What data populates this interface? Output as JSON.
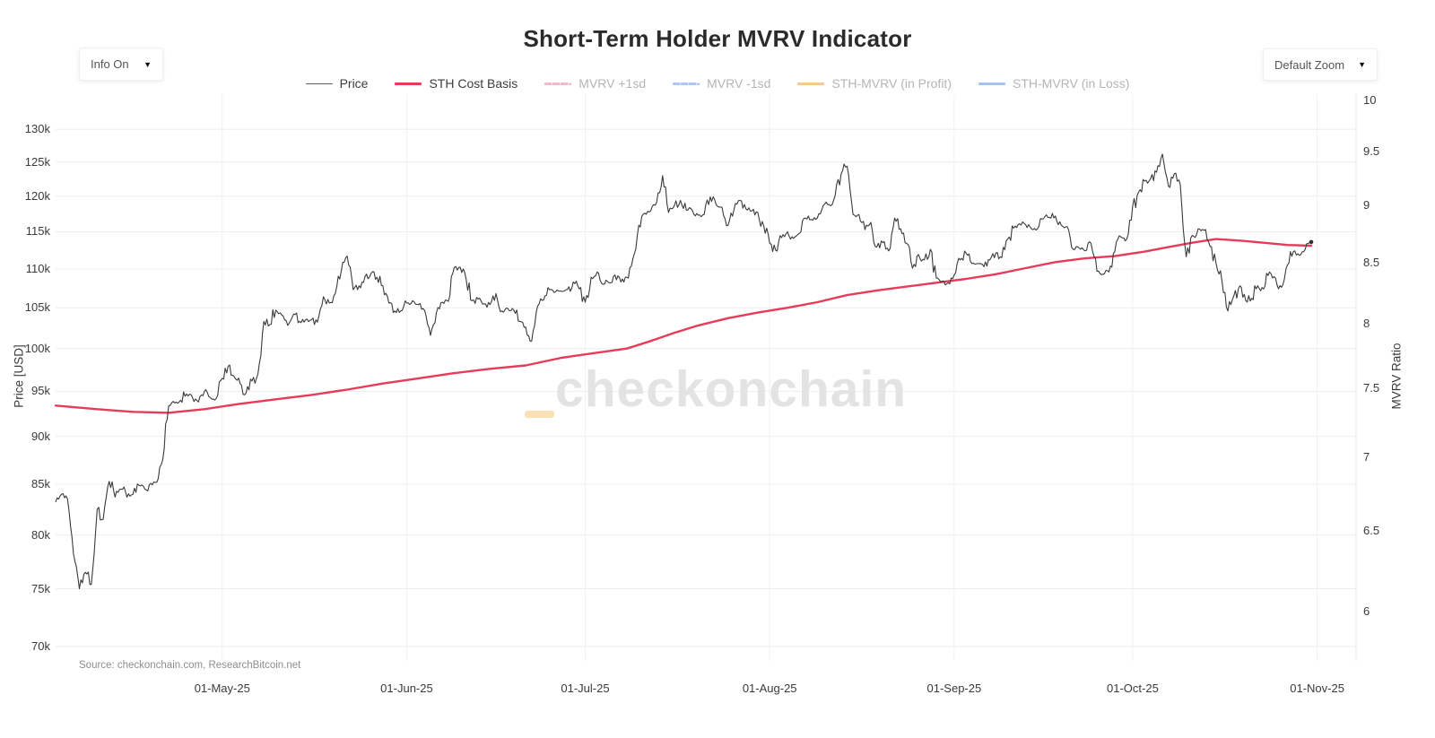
{
  "header": {
    "title": "Short-Term Holder MVRV Indicator",
    "info_dropdown": {
      "label": "Info On",
      "arrow": "▼"
    },
    "zoom_dropdown": {
      "label": "Default Zoom",
      "arrow": "▼"
    }
  },
  "legend": {
    "items": [
      {
        "label": "Price",
        "color": "#5f5f5f",
        "dashed": false,
        "muted": false,
        "thin": true
      },
      {
        "label": "STH Cost Basis",
        "color": "#e63c5a",
        "dashed": false,
        "muted": false,
        "thin": false
      },
      {
        "label": "MVRV +1sd",
        "color": "#f2b9c8",
        "dashed": true,
        "muted": true,
        "thin": false
      },
      {
        "label": "MVRV -1sd",
        "color": "#abc8f2",
        "dashed": true,
        "muted": true,
        "thin": false
      },
      {
        "label": "STH-MVRV (in Profit)",
        "color": "#f5c990",
        "dashed": false,
        "muted": true,
        "thin": false
      },
      {
        "label": "STH-MVRV (in Loss)",
        "color": "#a5c3ec",
        "dashed": false,
        "muted": true,
        "thin": false
      }
    ]
  },
  "watermark": {
    "text": "checkonchain",
    "underscore_color": "#fbe0b4",
    "text_color": "#e3e3e3"
  },
  "source": {
    "text": "Source: checkonchain.com, ResearchBitcoin.net"
  },
  "axes": {
    "left": {
      "title": "Price [USD]",
      "scale": "log",
      "ticks": [
        [
          "70k",
          70
        ],
        [
          "75k",
          75
        ],
        [
          "80k",
          80
        ],
        [
          "85k",
          85
        ],
        [
          "90k",
          90
        ],
        [
          "95k",
          95
        ],
        [
          "100k",
          100
        ],
        [
          "105k",
          105
        ],
        [
          "110k",
          110
        ],
        [
          "115k",
          115
        ],
        [
          "120k",
          120
        ],
        [
          "125k",
          125
        ],
        [
          "130k",
          130
        ]
      ]
    },
    "right": {
      "title": "MVRV Ratio",
      "scale": "log",
      "ticks": [
        [
          "6",
          6
        ],
        [
          "6.5",
          6.5
        ],
        [
          "7",
          7
        ],
        [
          "7.5",
          7.5
        ],
        [
          "8",
          8
        ],
        [
          "8.5",
          8.5
        ],
        [
          "9",
          9
        ],
        [
          "9.5",
          9.5
        ],
        [
          "10",
          10
        ]
      ]
    },
    "x": {
      "ticks": [
        [
          "01-May-25",
          "2025-05-01"
        ],
        [
          "01-Jun-25",
          "2025-06-01"
        ],
        [
          "01-Jul-25",
          "2025-07-01"
        ],
        [
          "01-Aug-25",
          "2025-08-01"
        ],
        [
          "01-Sep-25",
          "2025-09-01"
        ],
        [
          "01-Oct-25",
          "2025-10-01"
        ],
        [
          "01-Nov-25",
          "2025-11-01"
        ]
      ]
    }
  },
  "chart_data": {
    "type": "line",
    "title": "Short-Term Holder MVRV Indicator",
    "x_unit": "date",
    "y_unit_left": "thousand USD (log scale)",
    "y_unit_right": "MVRV Ratio (log scale)",
    "ylim_left": [
      68.8,
      135.6
    ],
    "ylim_right": [
      5.71,
      10.06
    ],
    "x_range": [
      "2025-04-03",
      "2025-11-07"
    ],
    "grid": true,
    "legend_position": "top-center",
    "hidden_series": [
      "MVRV +1sd",
      "MVRV -1sd",
      "STH-MVRV (in Profit)",
      "STH-MVRV (in Loss)"
    ],
    "series": [
      {
        "name": "Price",
        "color": "#3a3a3a",
        "axis": "left",
        "frequency": "daily",
        "start_date": "2025-04-03",
        "values": [
          83.2,
          84.0,
          83.5,
          78.2,
          75.0,
          76.5,
          75.4,
          82.5,
          81.5,
          85.3,
          83.7,
          84.5,
          83.7,
          84.0,
          84.9,
          84.5,
          85.1,
          85.2,
          87.5,
          93.4,
          93.7,
          94.0,
          94.7,
          94.3,
          93.8,
          95.0,
          94.3,
          94.2,
          96.5,
          97.9,
          96.7,
          95.9,
          94.8,
          96.2,
          97.0,
          103.3,
          102.9,
          104.7,
          104.1,
          102.8,
          104.2,
          103.3,
          103.5,
          103.5,
          103.2,
          106.4,
          105.6,
          106.8,
          109.7,
          111.7,
          107.3,
          107.8,
          109.0,
          109.4,
          108.9,
          107.8,
          105.6,
          104.6,
          104.6,
          105.6,
          105.9,
          105.4,
          104.7,
          101.6,
          104.4,
          105.7,
          105.8,
          110.2,
          110.2,
          108.6,
          105.9,
          106.1,
          105.5,
          105.4,
          106.8,
          104.6,
          104.9,
          104.7,
          103.3,
          102.6,
          100.9,
          105.2,
          106.0,
          107.3,
          107.0,
          107.1,
          107.3,
          108.3,
          107.4,
          105.7,
          108.9,
          109.6,
          108.0,
          108.2,
          109.2,
          108.3,
          108.9,
          111.3,
          115.9,
          117.6,
          117.9,
          119.1,
          123.0,
          117.7,
          118.7,
          119.4,
          118.0,
          118.0,
          117.3,
          117.4,
          119.9,
          118.8,
          118.4,
          115.9,
          118.1,
          119.4,
          118.2,
          117.9,
          117.7,
          115.8,
          113.4,
          112.5,
          114.2,
          115.0,
          114.1,
          114.8,
          116.9,
          116.7,
          116.9,
          118.7,
          118.8,
          120.1,
          123.2,
          124.4,
          117.4,
          117.4,
          115.3,
          116.3,
          112.9,
          113.5,
          112.4,
          116.9,
          115.4,
          113.4,
          110.1,
          111.9,
          111.2,
          112.6,
          108.8,
          108.4,
          108.2,
          109.2,
          111.2,
          112.1,
          110.7,
          110.7,
          110.3,
          111.2,
          112.1,
          111.5,
          114.0,
          115.5,
          116.1,
          116.0,
          115.4,
          115.4,
          116.8,
          117.0,
          117.2,
          115.9,
          115.7,
          112.6,
          112.8,
          112.4,
          113.4,
          109.7,
          109.3,
          109.6,
          112.3,
          114.3,
          114.0,
          118.6,
          120.6,
          122.2,
          122.5,
          123.5,
          126.2,
          121.5,
          123.3,
          121.7,
          111.6,
          114.5,
          115.4,
          115.2,
          113.0,
          110.8,
          108.4,
          104.6,
          106.5,
          107.8,
          105.9,
          106.2,
          107.8,
          107.4,
          109.6,
          108.8,
          107.6,
          110.5,
          112.3,
          111.8,
          112.6,
          113.6
        ]
      },
      {
        "name": "STH Cost Basis",
        "color": "#e63c5a",
        "axis": "left",
        "points": [
          [
            "2025-04-03",
            93.4
          ],
          [
            "2025-04-10",
            93.0
          ],
          [
            "2025-04-16",
            92.7
          ],
          [
            "2025-04-22",
            92.6
          ],
          [
            "2025-04-28",
            93.0
          ],
          [
            "2025-05-04",
            93.6
          ],
          [
            "2025-05-10",
            94.1
          ],
          [
            "2025-05-16",
            94.6
          ],
          [
            "2025-05-22",
            95.2
          ],
          [
            "2025-05-28",
            95.9
          ],
          [
            "2025-06-03",
            96.5
          ],
          [
            "2025-06-09",
            97.1
          ],
          [
            "2025-06-15",
            97.6
          ],
          [
            "2025-06-21",
            98.0
          ],
          [
            "2025-06-27",
            98.9
          ],
          [
            "2025-07-03",
            99.5
          ],
          [
            "2025-07-08",
            100.0
          ],
          [
            "2025-07-12",
            100.9
          ],
          [
            "2025-07-16",
            101.9
          ],
          [
            "2025-07-20",
            102.8
          ],
          [
            "2025-07-25",
            103.7
          ],
          [
            "2025-07-30",
            104.4
          ],
          [
            "2025-08-04",
            105.0
          ],
          [
            "2025-08-09",
            105.7
          ],
          [
            "2025-08-14",
            106.6
          ],
          [
            "2025-08-19",
            107.2
          ],
          [
            "2025-08-24",
            107.7
          ],
          [
            "2025-08-29",
            108.2
          ],
          [
            "2025-09-03",
            108.7
          ],
          [
            "2025-09-08",
            109.3
          ],
          [
            "2025-09-13",
            110.1
          ],
          [
            "2025-09-18",
            110.9
          ],
          [
            "2025-09-23",
            111.4
          ],
          [
            "2025-09-28",
            111.7
          ],
          [
            "2025-10-03",
            112.3
          ],
          [
            "2025-10-07",
            112.9
          ],
          [
            "2025-10-11",
            113.5
          ],
          [
            "2025-10-15",
            114.0
          ],
          [
            "2025-10-19",
            113.8
          ],
          [
            "2025-10-23",
            113.5
          ],
          [
            "2025-10-27",
            113.2
          ],
          [
            "2025-10-31",
            113.1
          ]
        ]
      }
    ]
  }
}
